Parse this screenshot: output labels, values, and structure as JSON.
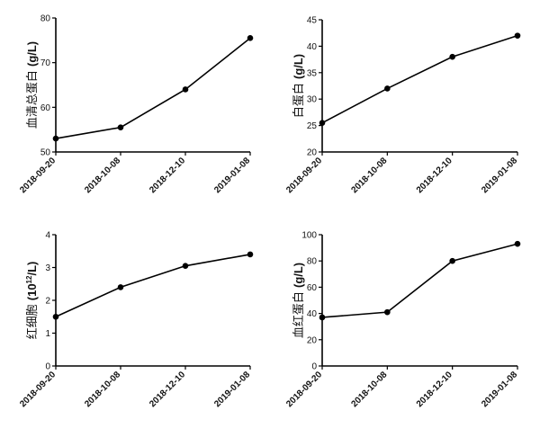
{
  "chart_data": [
    {
      "type": "line",
      "x": [
        "2018-09-20",
        "2018-10-08",
        "2018-12-10",
        "2019-01-08"
      ],
      "values": [
        53,
        55.5,
        64,
        75.5
      ],
      "ylabel": "血清总蛋白 (g/L)",
      "ylabel_parts": {
        "cn": "血清总蛋白",
        "unit": "(g/L)"
      },
      "ylim": [
        50,
        80
      ],
      "yticks": [
        "50",
        "60",
        "70",
        "80"
      ],
      "grid": false
    },
    {
      "type": "line",
      "x": [
        "2018-09-20",
        "2018-10-08",
        "2018-12-10",
        "2019-01-08"
      ],
      "values": [
        25.5,
        32,
        38,
        42
      ],
      "ylabel": "白蛋白 (g/L)",
      "ylabel_parts": {
        "cn": "白蛋白",
        "unit": "(g/L)"
      },
      "ylim": [
        20,
        45
      ],
      "yticks": [
        "20",
        "25",
        "30",
        "35",
        "40",
        "45"
      ],
      "grid": false
    },
    {
      "type": "line",
      "x": [
        "2018-09-20",
        "2018-10-08",
        "2018-12-10",
        "2019-01-08"
      ],
      "values": [
        1.5,
        2.4,
        3.05,
        3.4
      ],
      "ylabel": "红细胞 (10¹²/L)",
      "ylabel_parts": {
        "cn": "红细胞",
        "unit_pre": "(10",
        "unit_sup": "12",
        "unit_post": "/L)"
      },
      "ylim": [
        0,
        4
      ],
      "yticks": [
        "0",
        "1",
        "2",
        "3",
        "4"
      ],
      "grid": false
    },
    {
      "type": "line",
      "x": [
        "2018-09-20",
        "2018-10-08",
        "2018-12-10",
        "2019-01-08"
      ],
      "values": [
        37,
        41,
        80,
        93
      ],
      "ylabel": "血红蛋白 (g/L)",
      "ylabel_parts": {
        "cn": "血红蛋白",
        "unit": "(g/L)"
      },
      "ylim": [
        0,
        100
      ],
      "yticks": [
        "0",
        "20",
        "40",
        "60",
        "80",
        "100"
      ],
      "grid": false
    }
  ]
}
